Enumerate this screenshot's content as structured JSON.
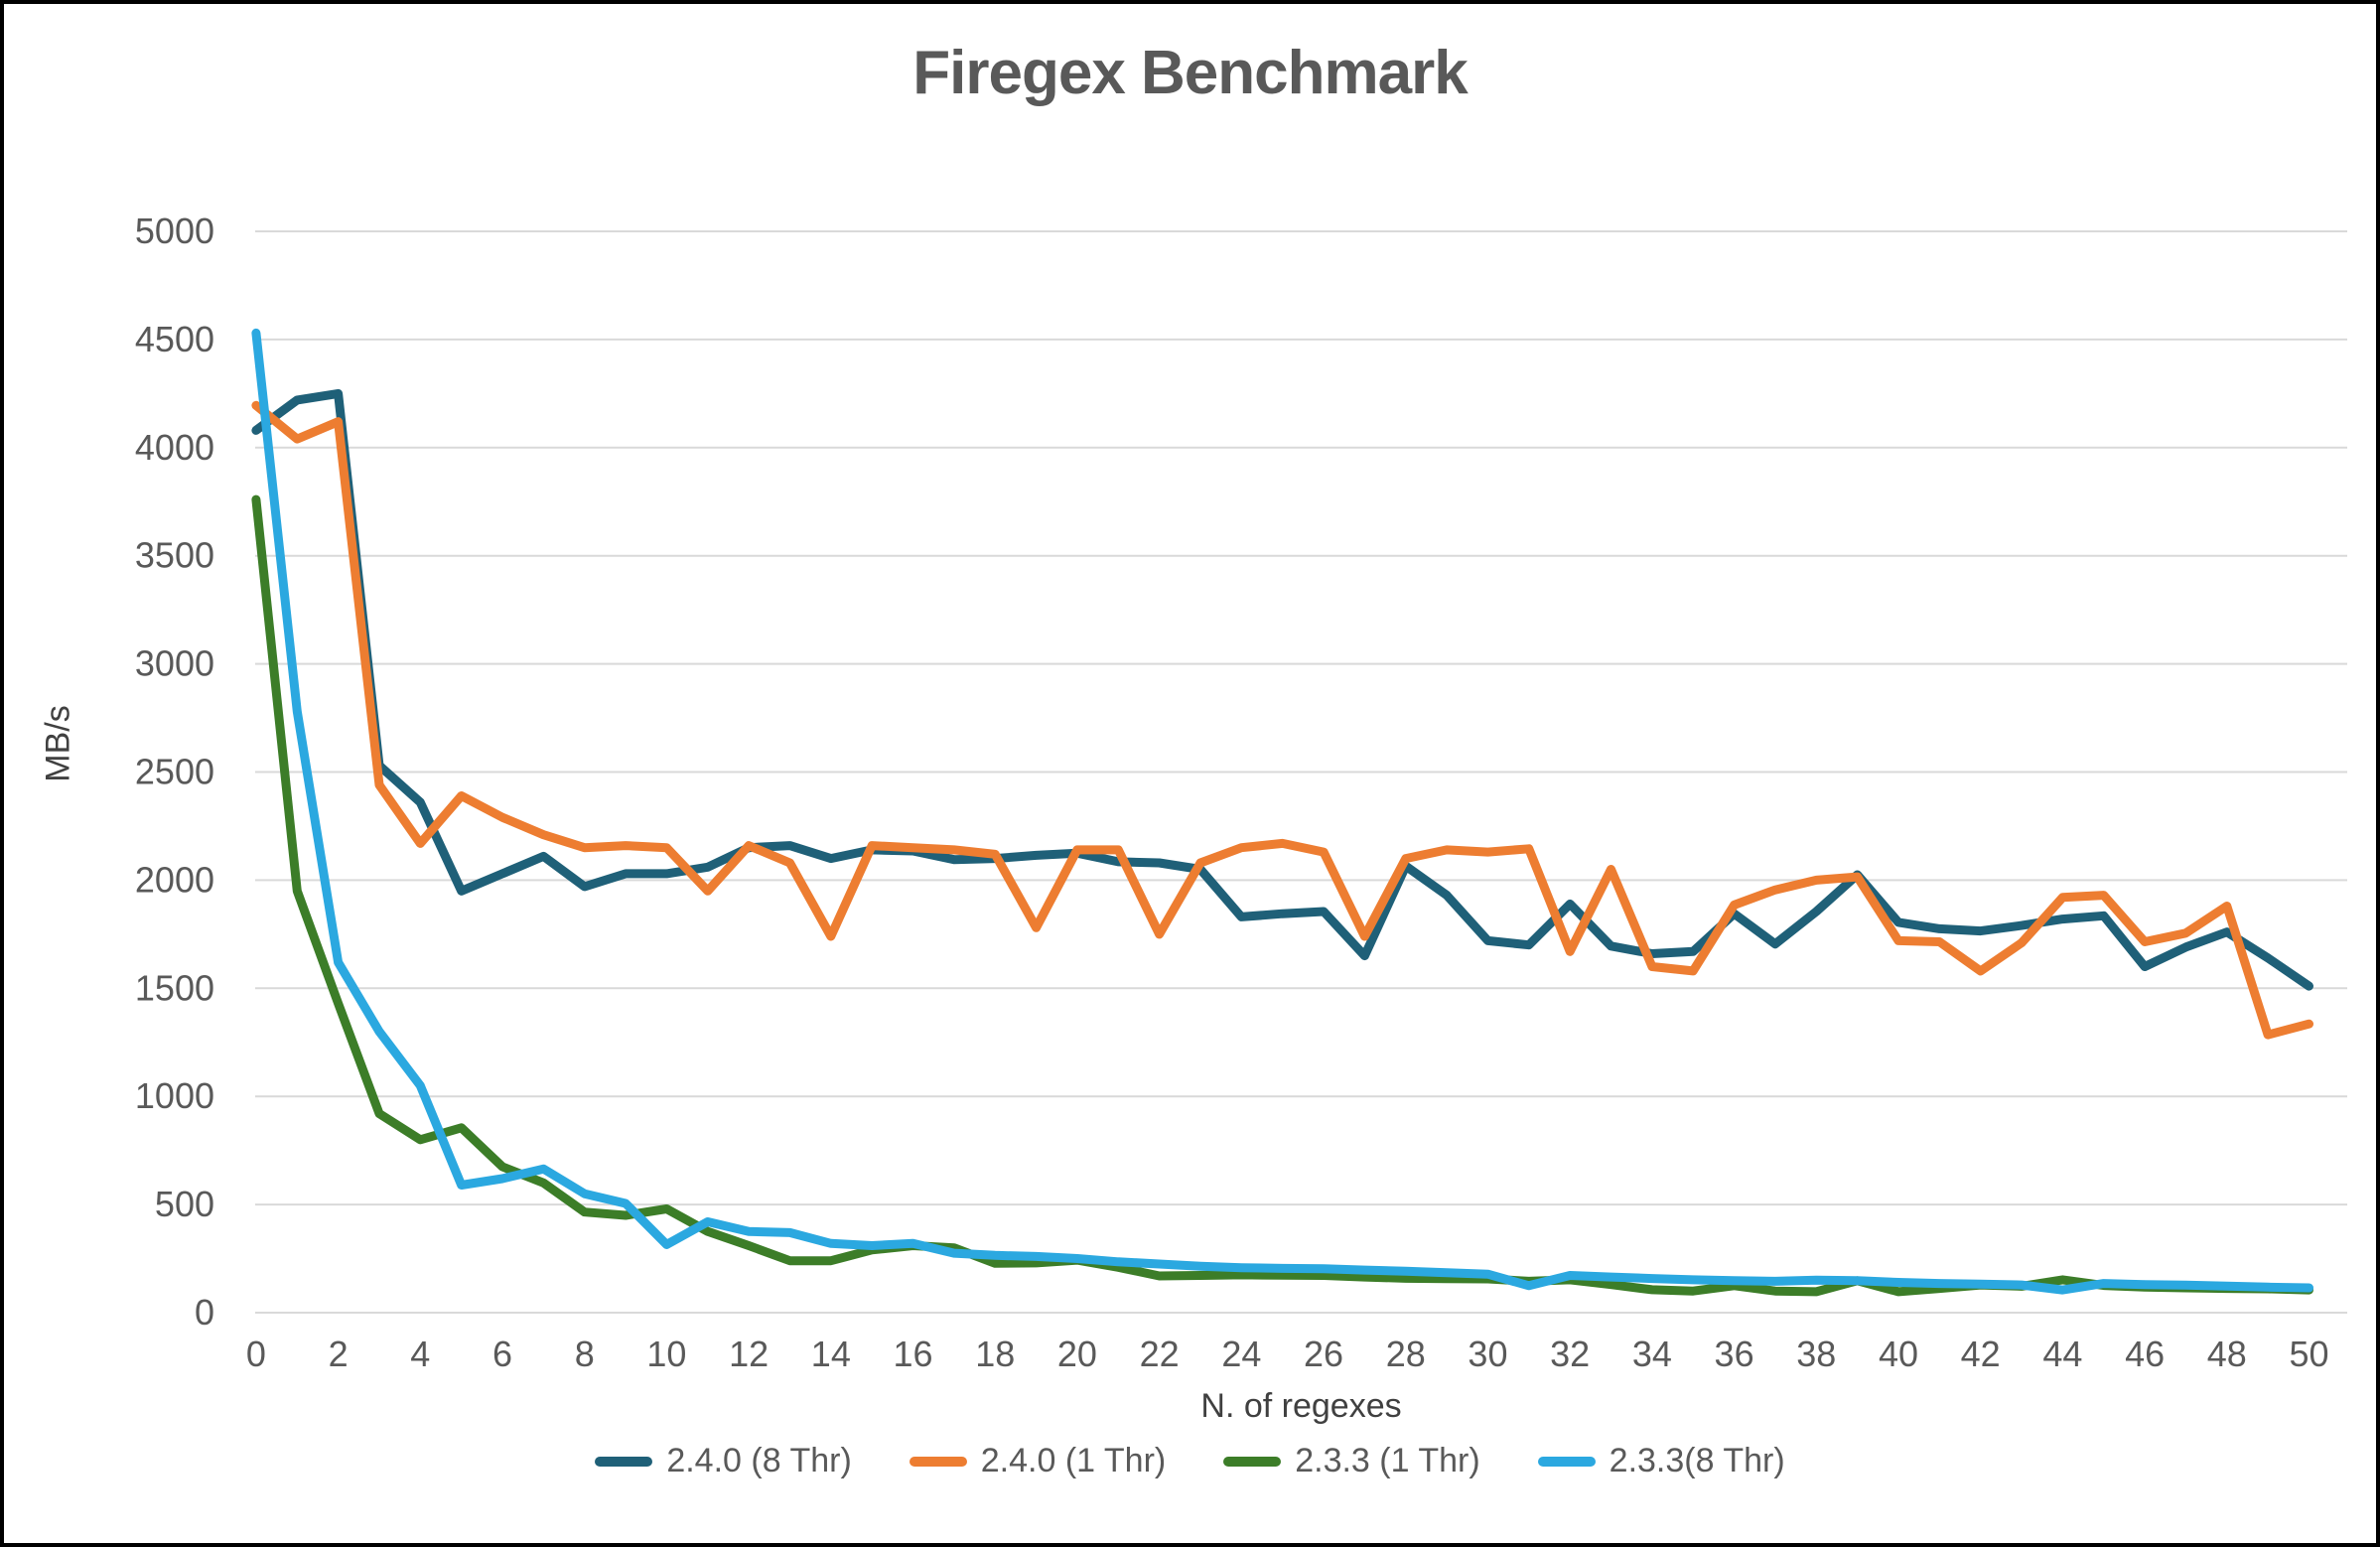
{
  "window": {
    "background": "#ffffff",
    "border_color": "#000000"
  },
  "style": {
    "title_color": "#595959",
    "axis_text_color": "#595959",
    "axis_title_color": "#404040",
    "gridline_color": "#D9D9D9",
    "series_stroke_width": 9
  },
  "chart_data": {
    "type": "line",
    "title": "Firegex Benchmark",
    "xlabel": "N. of regexes",
    "ylabel": "MB/s",
    "ylim": [
      0,
      5000
    ],
    "y_tick_step": 500,
    "xlim": [
      0,
      50
    ],
    "x_tick_step": 2,
    "grid": "horizontal",
    "legend_position": "bottom",
    "x": [
      0,
      1,
      2,
      3,
      4,
      5,
      6,
      7,
      8,
      9,
      10,
      11,
      12,
      13,
      14,
      15,
      16,
      17,
      18,
      19,
      20,
      21,
      22,
      23,
      24,
      25,
      26,
      27,
      28,
      29,
      30,
      31,
      32,
      33,
      34,
      35,
      36,
      37,
      38,
      39,
      40,
      41,
      42,
      43,
      44,
      45,
      46,
      47,
      48,
      49,
      50
    ],
    "series": [
      {
        "name": "2.4.0 (8 Thr)",
        "color": "#1F6078",
        "values": [
          4080,
          4220,
          4250,
          2530,
          2360,
          1950,
          2030,
          2110,
          1970,
          2030,
          2030,
          2060,
          2150,
          2160,
          2100,
          2140,
          2135,
          2095,
          2100,
          2115,
          2125,
          2085,
          2080,
          2050,
          1830,
          1845,
          1855,
          1650,
          2065,
          1930,
          1720,
          1700,
          1890,
          1695,
          1660,
          1670,
          1845,
          1705,
          1855,
          2025,
          1805,
          1775,
          1765,
          1790,
          1820,
          1835,
          1600,
          1690,
          1760,
          1640,
          1510
        ]
      },
      {
        "name": "2.4.0 (1 Thr)",
        "color": "#ED7D31",
        "values": [
          4195,
          4040,
          4120,
          2440,
          2170,
          2390,
          2290,
          2210,
          2150,
          2160,
          2150,
          1950,
          2160,
          2080,
          1740,
          2160,
          2150,
          2140,
          2120,
          1780,
          2140,
          2140,
          1750,
          2080,
          2150,
          2170,
          2130,
          1740,
          2100,
          2140,
          2130,
          2145,
          1670,
          2050,
          1600,
          1580,
          1885,
          1955,
          2000,
          2015,
          1720,
          1715,
          1580,
          1710,
          1920,
          1930,
          1715,
          1755,
          1880,
          1285,
          1335
        ]
      },
      {
        "name": "2.3.3 (1 Thr)",
        "color": "#3C7D28",
        "values": [
          3760,
          1950,
          1430,
          920,
          800,
          855,
          675,
          600,
          465,
          450,
          480,
          375,
          310,
          240,
          240,
          290,
          310,
          300,
          228,
          230,
          243,
          210,
          170,
          172,
          175,
          173,
          172,
          165,
          159,
          157,
          156,
          145,
          152,
          130,
          106,
          100,
          125,
          100,
          97,
          148,
          97,
          112,
          128,
          122,
          152,
          126,
          118,
          115,
          112,
          110,
          105
        ]
      },
      {
        "name": "2.3.3(8 Thr)",
        "color": "#2BA8E0",
        "values": [
          4530,
          2780,
          1620,
          1300,
          1050,
          590,
          620,
          665,
          550,
          505,
          315,
          420,
          375,
          370,
          320,
          310,
          320,
          275,
          265,
          260,
          250,
          235,
          225,
          215,
          208,
          205,
          203,
          197,
          192,
          185,
          178,
          125,
          172,
          165,
          158,
          152,
          148,
          145,
          150,
          148,
          140,
          135,
          132,
          128,
          105,
          135,
          130,
          127,
          123,
          118,
          115
        ]
      }
    ]
  }
}
